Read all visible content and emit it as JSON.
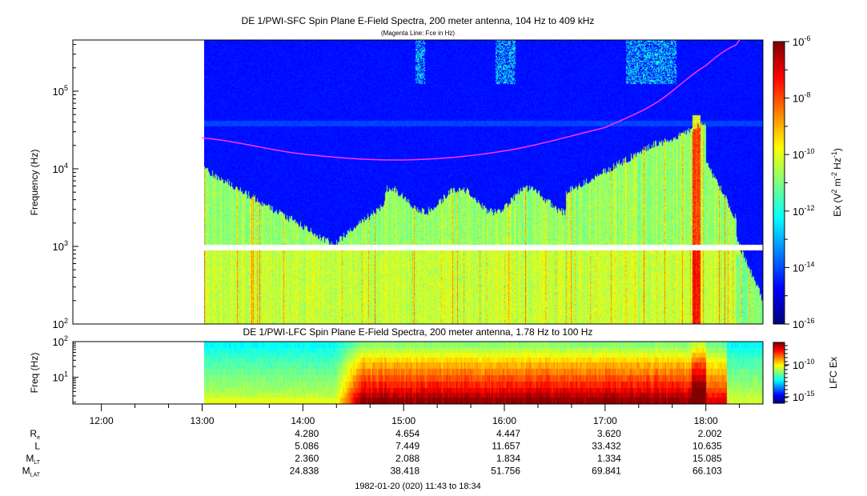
{
  "chart_data": [
    {
      "type": "heatmap",
      "title": "DE 1/PWI-SFC  Spin Plane E-Field Spectra, 200 meter antenna, 104 Hz to 409 kHz",
      "subtitle": "(Magenta Line: Fce in Hz)",
      "ylabel": "Frequency (Hz)",
      "yscale": "log",
      "ylim": [
        100,
        409000
      ],
      "yticks": [
        {
          "v": 100,
          "base": "10",
          "exp": "2"
        },
        {
          "v": 1000,
          "base": "10",
          "exp": "3"
        },
        {
          "v": 10000,
          "base": "10",
          "exp": "4"
        },
        {
          "v": 100000,
          "base": "10",
          "exp": "5"
        }
      ],
      "data_start": "13:00",
      "colorbar": {
        "label_main": "Ex (V",
        "label_parts": [
          "Ex (V",
          "2",
          " m",
          "-2",
          " Hz",
          "-1",
          ")"
        ],
        "scale": "log",
        "range": [
          1e-16,
          1e-06
        ],
        "colormap": "jet",
        "ticks": [
          {
            "base": "10",
            "exp": "-6"
          },
          {
            "base": "10",
            "exp": "-8"
          },
          {
            "base": "10",
            "exp": "-10"
          },
          {
            "base": "10",
            "exp": "-12"
          },
          {
            "base": "10",
            "exp": "-14"
          },
          {
            "base": "10",
            "exp": "-16"
          }
        ]
      },
      "fce_line": {
        "color": "#ff33ff",
        "points": [
          [
            "13:00",
            25000
          ],
          [
            "14:00",
            15500
          ],
          [
            "15:00",
            13000
          ],
          [
            "16:00",
            17000
          ],
          [
            "17:00",
            34000
          ],
          [
            "17:30",
            70000
          ],
          [
            "18:00",
            214000
          ],
          [
            "18:20",
            409000
          ]
        ]
      }
    },
    {
      "type": "heatmap",
      "title": "DE 1/PWI-LFC  Spin Plane E-Field Spectra, 200 meter antenna, 1.78 Hz to 100 Hz",
      "ylabel": "Freq (Hz)",
      "yscale": "log",
      "ylim": [
        1.78,
        100
      ],
      "yticks": [
        {
          "v": 10,
          "base": "10",
          "exp": "1"
        },
        {
          "v": 100,
          "base": "10",
          "exp": "2"
        }
      ],
      "colorbar": {
        "label": "LFC Ex",
        "scale": "log",
        "colormap": "jet",
        "ticks": [
          {
            "base": "10",
            "exp": "-10"
          },
          {
            "base": "10",
            "exp": "-15"
          }
        ]
      }
    }
  ],
  "time_axis": {
    "ticks": [
      "12:00",
      "13:00",
      "14:00",
      "15:00",
      "16:00",
      "17:00",
      "18:00"
    ],
    "range_label": "1982-01-20 (020) 11:43 to 18:34"
  },
  "ephemeris": {
    "rows": [
      {
        "label": "R",
        "sub": "e",
        "values": [
          "4.280",
          "4.654",
          "4.447",
          "3.620",
          "2.002"
        ]
      },
      {
        "label": "L",
        "sub": "",
        "values": [
          "5.086",
          "7.449",
          "11.657",
          "33.432",
          "10.635"
        ]
      },
      {
        "label": "M",
        "sub": "LT",
        "values": [
          "2.360",
          "2.088",
          "1.834",
          "1.334",
          "15.085"
        ]
      },
      {
        "label": "M",
        "sub": "LAT",
        "values": [
          "24.838",
          "38.418",
          "51.756",
          "69.841",
          "66.103"
        ]
      }
    ]
  }
}
